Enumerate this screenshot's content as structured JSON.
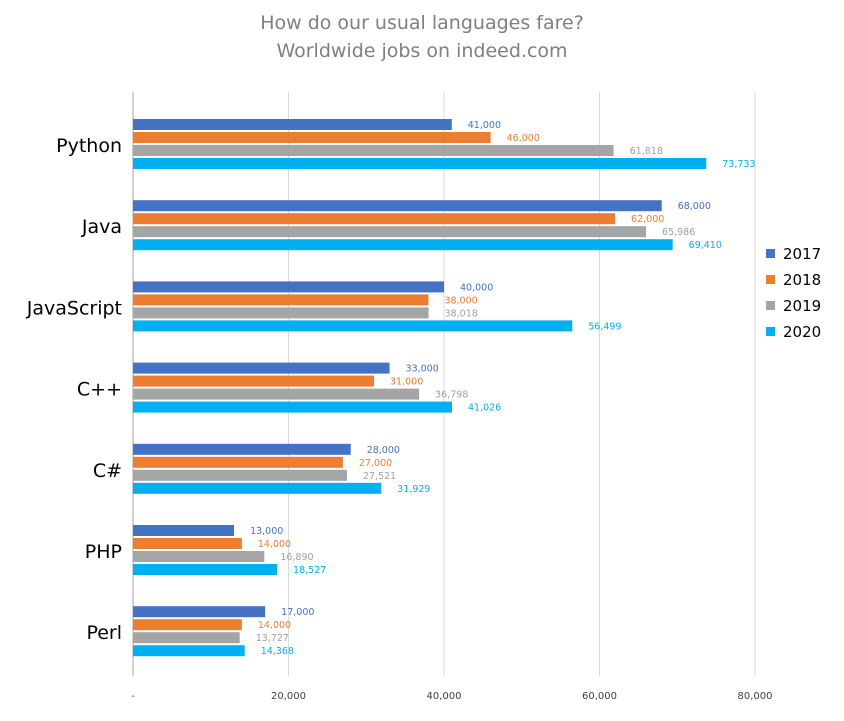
{
  "chart_data": {
    "type": "bar",
    "orientation": "horizontal",
    "title": "How do our usual languages fare?",
    "subtitle": "Worldwide jobs on indeed.com",
    "categories": [
      "Python",
      "Java",
      "JavaScript",
      "C++",
      "C#",
      "PHP",
      "Perl"
    ],
    "series": [
      {
        "name": "2017",
        "color": "#4472c4",
        "values": [
          41000,
          68000,
          40000,
          33000,
          28000,
          13000,
          17000
        ],
        "labels": [
          "41,000",
          "68,000",
          "40,000",
          "33,000",
          "28,000",
          "13,000",
          "17,000"
        ]
      },
      {
        "name": "2018",
        "color": "#ed7d31",
        "values": [
          46000,
          62000,
          38000,
          31000,
          27000,
          14000,
          14000
        ],
        "labels": [
          "46,000",
          "62,000",
          "38,000",
          "31,000",
          "27,000",
          "14,000",
          "14,000"
        ]
      },
      {
        "name": "2019",
        "color": "#a5a5a5",
        "values": [
          61818,
          65986,
          38018,
          36798,
          27521,
          16890,
          13727
        ],
        "labels": [
          "61,818",
          "65,986",
          "38,018",
          "36,798",
          "27,521",
          "16,890",
          "13,727"
        ]
      },
      {
        "name": "2020",
        "color": "#00b0f0",
        "values": [
          73733,
          69410,
          56499,
          41026,
          31929,
          18527,
          14368
        ],
        "labels": [
          "73,733",
          "69,410",
          "56,499",
          "41,026",
          "31,929",
          "18,527",
          "14,368"
        ]
      }
    ],
    "xlim": [
      0,
      80000
    ],
    "xticks": [
      0,
      20000,
      40000,
      60000,
      80000
    ],
    "xtick_labels": [
      "-",
      "20,000",
      "40,000",
      "60,000",
      "80,000"
    ],
    "legend_position": "right",
    "grid": true,
    "xlabel": "",
    "ylabel": ""
  }
}
